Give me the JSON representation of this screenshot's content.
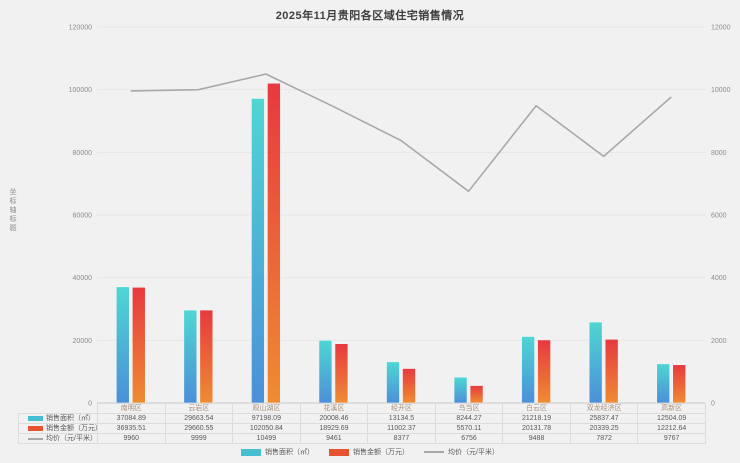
{
  "title": "2025年11月贵阳各区域住宅销售情况",
  "chart_data": {
    "type": "bar",
    "subtype": "bar-and-line-combo",
    "categories": [
      "南明区",
      "云岩区",
      "观山湖区",
      "花溪区",
      "经开区",
      "乌当区",
      "白云区",
      "双龙经济区",
      "高新区"
    ],
    "series": [
      {
        "name": "销售面积（㎡）",
        "type": "bar",
        "axis": "left",
        "values": [
          37084.89,
          29663.54,
          97198.09,
          20008.46,
          13134.5,
          8244.27,
          21218.19,
          25837.47,
          12504.09
        ]
      },
      {
        "name": "销售金额（万元）",
        "type": "bar",
        "axis": "left",
        "values": [
          36935.51,
          29660.55,
          102050.84,
          18929.69,
          11002.37,
          5570.11,
          20131.78,
          20339.25,
          12212.64
        ]
      },
      {
        "name": "均价（元/平米）",
        "type": "line",
        "axis": "right",
        "values": [
          9960,
          9999,
          10499,
          9461,
          8377,
          6756,
          9488,
          7872,
          9767
        ]
      }
    ],
    "ylim_left": [
      0,
      120000
    ],
    "ylim_right": [
      0,
      12000
    ],
    "left_ticks": [
      "0",
      "20000",
      "40000",
      "60000",
      "80000",
      "100000",
      "120000"
    ],
    "right_ticks": [
      "0",
      "2000",
      "4000",
      "6000",
      "8000",
      "10000",
      "12000"
    ],
    "grid": true,
    "legend_position": "bottom",
    "data_table_shown": true,
    "left_axis_title": "坐标轴标题"
  },
  "colors": {
    "background": "#f1f1f1",
    "title_text": "#3f3f3f",
    "grid_line": "#e6e6e6",
    "axis_line": "#c9c9c9",
    "area_bar_top": "#4fd6d3",
    "area_bar_bottom": "#4b8fd8",
    "amount_bar_top": "#e7393f",
    "amount_bar_bottom": "#ee8c33",
    "price_line": "#a9a9a9",
    "legend_area_swatch": "#45bfd1",
    "legend_amount_swatch": "#e6532f",
    "table_border": "#dcdcdc",
    "district_text": "#a5917f",
    "value_text": "#595959"
  }
}
